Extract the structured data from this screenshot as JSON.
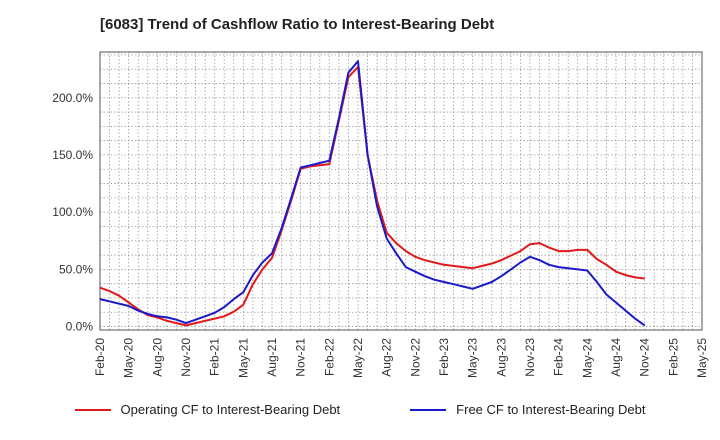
{
  "chart_data": {
    "type": "line",
    "title": "[6083]  Trend of Cashflow Ratio to Interest-Bearing Debt",
    "x_tick_labels": [
      "Feb-20",
      "May-20",
      "Aug-20",
      "Nov-20",
      "Feb-21",
      "May-21",
      "Aug-21",
      "Nov-21",
      "Feb-22",
      "May-22",
      "Aug-22",
      "Nov-22",
      "Feb-23",
      "May-23",
      "Aug-23",
      "Nov-23",
      "Feb-24",
      "May-24",
      "Aug-24",
      "Nov-24",
      "Feb-25",
      "May-25"
    ],
    "x_points": [
      "Feb-20",
      "Mar-20",
      "Apr-20",
      "May-20",
      "Jun-20",
      "Jul-20",
      "Aug-20",
      "Sep-20",
      "Oct-20",
      "Nov-20",
      "Dec-20",
      "Jan-21",
      "Feb-21",
      "Mar-21",
      "Apr-21",
      "May-21",
      "Jun-21",
      "Jul-21",
      "Aug-21",
      "Sep-21",
      "Oct-21",
      "Nov-21",
      "Dec-21",
      "Jan-22",
      "Feb-22",
      "Mar-22",
      "Apr-22",
      "May-22",
      "Jun-22",
      "Jul-22",
      "Aug-22",
      "Sep-22",
      "Oct-22",
      "Nov-22",
      "Dec-22",
      "Jan-23",
      "Feb-23",
      "Mar-23",
      "Apr-23",
      "May-23",
      "Jun-23",
      "Jul-23",
      "Aug-23",
      "Sep-23",
      "Oct-23",
      "Nov-23",
      "Dec-23",
      "Jan-24",
      "Feb-24",
      "Mar-24",
      "Apr-24",
      "May-24",
      "Jun-24",
      "Jul-24",
      "Aug-24",
      "Sep-24",
      "Oct-24",
      "Nov-24",
      "Dec-24",
      "Jan-25",
      "Feb-25",
      "Mar-25",
      "Apr-25",
      "May-25"
    ],
    "y_tick_labels": [
      "0.0%",
      "50.0%",
      "100.0%",
      "150.0%",
      "200.0%"
    ],
    "y_ticks": [
      0,
      50,
      100,
      150,
      200
    ],
    "ylim": [
      -3,
      240
    ],
    "grid": true,
    "legend_position": "bottom",
    "series": [
      {
        "name": "Operating CF to Interest-Bearing Debt",
        "color": "#e0191b",
        "values": [
          34,
          31,
          27,
          21,
          15,
          10,
          8,
          5,
          3,
          1,
          3,
          5,
          7,
          9,
          13,
          19,
          37,
          50,
          60,
          84,
          110,
          138,
          140,
          141,
          142,
          180,
          218,
          227,
          150,
          110,
          82,
          73,
          66,
          61,
          58,
          56,
          54,
          53,
          52,
          51,
          53,
          55,
          58,
          62,
          66,
          72,
          73,
          69,
          66,
          66,
          67,
          67,
          59,
          54,
          48,
          45,
          43,
          42,
          null,
          null,
          null,
          null,
          null,
          null
        ]
      },
      {
        "name": "Free CF to Interest-Bearing Debt",
        "color": "#1a1acb",
        "values": [
          24,
          22,
          20,
          18,
          14,
          11,
          9,
          8,
          6,
          3,
          6,
          9,
          12,
          17,
          24,
          30,
          45,
          56,
          64,
          86,
          112,
          139,
          141,
          143,
          145,
          182,
          222,
          232,
          150,
          105,
          77,
          64,
          52,
          48,
          44,
          41,
          39,
          37,
          35,
          33,
          36,
          39,
          44,
          50,
          56,
          61,
          58,
          54,
          52,
          51,
          50,
          49,
          39,
          28,
          21,
          14,
          7,
          1,
          null,
          null,
          null,
          null,
          null,
          null
        ]
      }
    ]
  }
}
